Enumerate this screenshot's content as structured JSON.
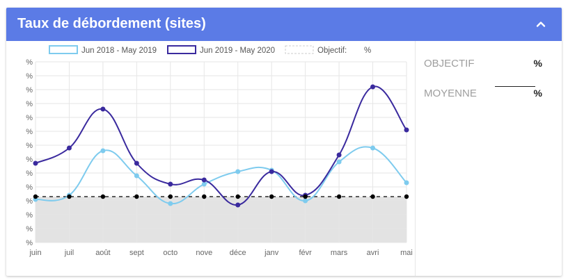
{
  "card": {
    "title": "Taux de débordement (sites)"
  },
  "icons": {
    "collapse": "chevron-up-icon"
  },
  "colors": {
    "header": "#5b7be6",
    "series_2018": "#7ecbee",
    "series_2019": "#3a2a9e",
    "objective": "#000000",
    "below_objective_fill": "#e3e3e3"
  },
  "stats": {
    "objectif_label": "OBJECTIF",
    "objectif_value": "%",
    "moyenne_label": "MOYENNE",
    "moyenne_value": "%"
  },
  "chart_data": {
    "type": "line",
    "smooth": true,
    "categories": [
      "juin",
      "juil",
      "août",
      "sept",
      "octo",
      "nove",
      "déce",
      "janv",
      "févr",
      "mars",
      "avri",
      "mai"
    ],
    "y_tick_labels": [
      "%",
      "%",
      "%",
      "%",
      "%",
      "%",
      "%",
      "%",
      "%",
      "%",
      "%",
      "%",
      "%",
      "%"
    ],
    "grid": true,
    "legend_position": "top",
    "legend": [
      {
        "label": "Jun 2018 - May 2019",
        "style": "series_2018"
      },
      {
        "label": "Jun 2019 - May 2020",
        "style": "series_2019"
      },
      {
        "label": "Objectif:",
        "suffix": "%",
        "style": "objective"
      }
    ],
    "ylim": [
      0,
      13
    ],
    "objective": 3.3,
    "series": [
      {
        "name": "Jun 2018 - May 2019",
        "values": [
          3.1,
          3.4,
          6.6,
          4.8,
          2.8,
          4.2,
          5.1,
          5.2,
          3.0,
          5.8,
          6.8,
          4.3
        ]
      },
      {
        "name": "Jun 2019 - May 2020",
        "values": [
          5.7,
          6.8,
          9.6,
          5.7,
          4.2,
          4.5,
          2.7,
          5.1,
          3.4,
          6.3,
          11.2,
          8.1
        ]
      }
    ]
  }
}
